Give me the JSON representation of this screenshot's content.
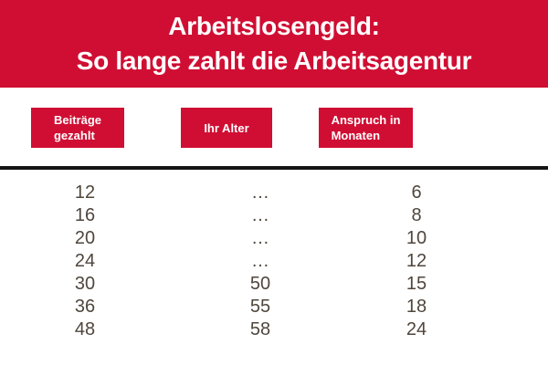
{
  "title": {
    "line1": "Arbeitslosengeld:",
    "line2": "So lange zahlt die Arbeitsagentur"
  },
  "column_headers": [
    {
      "line1": "Beiträge",
      "line2": "gezahlt"
    },
    {
      "line1": "Ihr Alter"
    },
    {
      "line1": "Anspruch in",
      "line2": "Monaten"
    }
  ],
  "chart_data": {
    "type": "table",
    "title": "Arbeitslosengeld: So lange zahlt die Arbeitsagentur",
    "columns": [
      "Beiträge gezahlt",
      "Ihr Alter",
      "Anspruch in Monaten"
    ],
    "rows": [
      [
        "12",
        "…",
        "6"
      ],
      [
        "16",
        "…",
        "8"
      ],
      [
        "20",
        "…",
        "10"
      ],
      [
        "24",
        "…",
        "12"
      ],
      [
        "30",
        "50",
        "15"
      ],
      [
        "36",
        "55",
        "18"
      ],
      [
        "48",
        "58",
        "24"
      ]
    ]
  },
  "colors": {
    "accent_red": "#d00e33",
    "table_text": "#4f463d",
    "divider": "#141414",
    "header_text": "#ffffff"
  }
}
